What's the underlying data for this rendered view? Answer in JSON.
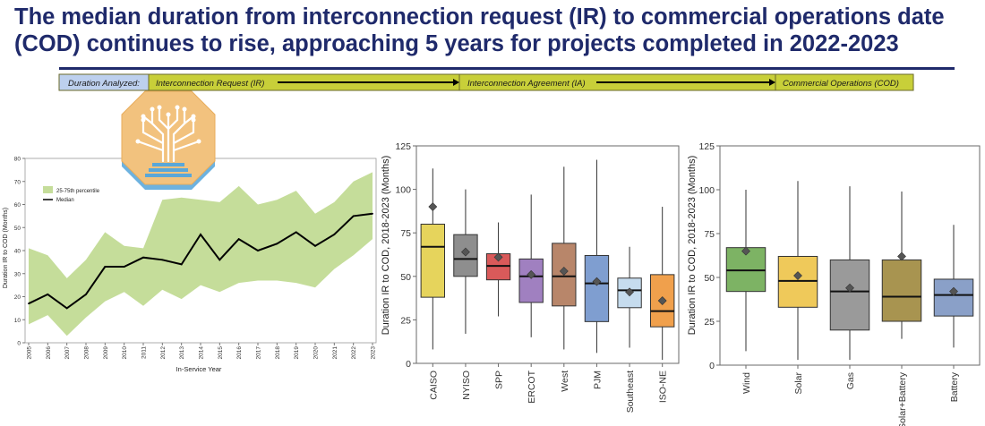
{
  "header": {
    "title": "The median duration from interconnection request (IR) to commercial operations date (COD) continues to rise, approaching 5 years for projects completed in 2022-2023"
  },
  "flow": {
    "label": "Duration Analyzed:",
    "stages": [
      "Interconnection Request (IR)",
      "Interconnection Agreement (IA)",
      "Commercial Operations (COD)"
    ],
    "colors": {
      "label_bg": "#bdd0ee",
      "stage_bg": "#c8cf39",
      "border": "#6a6a2a"
    }
  },
  "logo": {
    "name": "tree-circuit-logo"
  },
  "chart_data": [
    {
      "type": "area",
      "title": "",
      "xlabel": "In-Service Year",
      "ylabel": "Duration IR to COD (Months)",
      "ylim": [
        0,
        80
      ],
      "yticks": [
        0,
        10,
        20,
        30,
        40,
        50,
        60,
        70,
        80
      ],
      "x": [
        "2005",
        "2006",
        "2007",
        "2008",
        "2009",
        "2010",
        "2011",
        "2012",
        "2013",
        "2014",
        "2015",
        "2016",
        "2017",
        "2018",
        "2019",
        "2020",
        "2021",
        "2022",
        "2023"
      ],
      "series": [
        {
          "name": "Median",
          "values": [
            17,
            21,
            15,
            21,
            33,
            33,
            37,
            36,
            34,
            47,
            36,
            45,
            40,
            43,
            48,
            42,
            47,
            55,
            56
          ]
        },
        {
          "name": "25-75th percentile",
          "lower": [
            8,
            12,
            3,
            11,
            18,
            22,
            16,
            23,
            19,
            25,
            22,
            26,
            27,
            27,
            26,
            24,
            32,
            38,
            45
          ],
          "upper": [
            41,
            38,
            28,
            36,
            48,
            42,
            41,
            62,
            63,
            62,
            61,
            68,
            60,
            62,
            66,
            56,
            61,
            70,
            74
          ]
        }
      ],
      "legend_position": "top-left",
      "colors": {
        "band": "#c5dd9a",
        "median": "#000000"
      }
    },
    {
      "type": "box",
      "title": "",
      "xlabel": "",
      "ylabel": "Duration IR to COD, 2018-2023 (Months)",
      "ylim": [
        0,
        125
      ],
      "yticks": [
        0,
        25,
        50,
        75,
        100,
        125
      ],
      "categories": [
        "CAISO",
        "NYISO",
        "SPP",
        "ERCOT",
        "West",
        "PJM",
        "Southeast",
        "ISO-NE"
      ],
      "boxes": [
        {
          "whisker_low": 8,
          "q1": 38,
          "median": 67,
          "q3": 80,
          "whisker_high": 112,
          "mean": 90,
          "color": "#e6d45c"
        },
        {
          "whisker_low": 17,
          "q1": 50,
          "median": 60,
          "q3": 74,
          "whisker_high": 100,
          "mean": 64,
          "color": "#8e8e8e"
        },
        {
          "whisker_low": 27,
          "q1": 48,
          "median": 56,
          "q3": 63,
          "whisker_high": 81,
          "mean": 61,
          "color": "#d95a5a"
        },
        {
          "whisker_low": 15,
          "q1": 35,
          "median": 50,
          "q3": 60,
          "whisker_high": 97,
          "mean": 51,
          "color": "#a080c0"
        },
        {
          "whisker_low": 8,
          "q1": 33,
          "median": 50,
          "q3": 69,
          "whisker_high": 113,
          "mean": 53,
          "color": "#b8866a"
        },
        {
          "whisker_low": 6,
          "q1": 24,
          "median": 46,
          "q3": 62,
          "whisker_high": 117,
          "mean": 47,
          "color": "#7f9ed0"
        },
        {
          "whisker_low": 9,
          "q1": 32,
          "median": 42,
          "q3": 49,
          "whisker_high": 67,
          "mean": 41,
          "color": "#c6dcee"
        },
        {
          "whisker_low": 2,
          "q1": 21,
          "median": 30,
          "q3": 51,
          "whisker_high": 90,
          "mean": 36,
          "color": "#f0a04c"
        }
      ]
    },
    {
      "type": "box",
      "title": "",
      "xlabel": "",
      "ylabel": "Duration IR to COD, 2018-2023 (Months)",
      "ylim": [
        0,
        125
      ],
      "yticks": [
        0,
        25,
        50,
        75,
        100,
        125
      ],
      "categories": [
        "Wind",
        "Solar",
        "Gas",
        "Solar+Battery",
        "Battery"
      ],
      "boxes": [
        {
          "whisker_low": 8,
          "q1": 42,
          "median": 54,
          "q3": 67,
          "whisker_high": 100,
          "mean": 65,
          "color": "#7db364"
        },
        {
          "whisker_low": 3,
          "q1": 33,
          "median": 48,
          "q3": 62,
          "whisker_high": 105,
          "mean": 51,
          "color": "#efc95a"
        },
        {
          "whisker_low": 3,
          "q1": 20,
          "median": 42,
          "q3": 60,
          "whisker_high": 102,
          "mean": 44,
          "color": "#9a9a9a"
        },
        {
          "whisker_low": 15,
          "q1": 25,
          "median": 39,
          "q3": 60,
          "whisker_high": 99,
          "mean": 62,
          "color": "#a89450"
        },
        {
          "whisker_low": 10,
          "q1": 28,
          "median": 40,
          "q3": 49,
          "whisker_high": 80,
          "mean": 42,
          "color": "#8aa0c8"
        }
      ]
    }
  ]
}
